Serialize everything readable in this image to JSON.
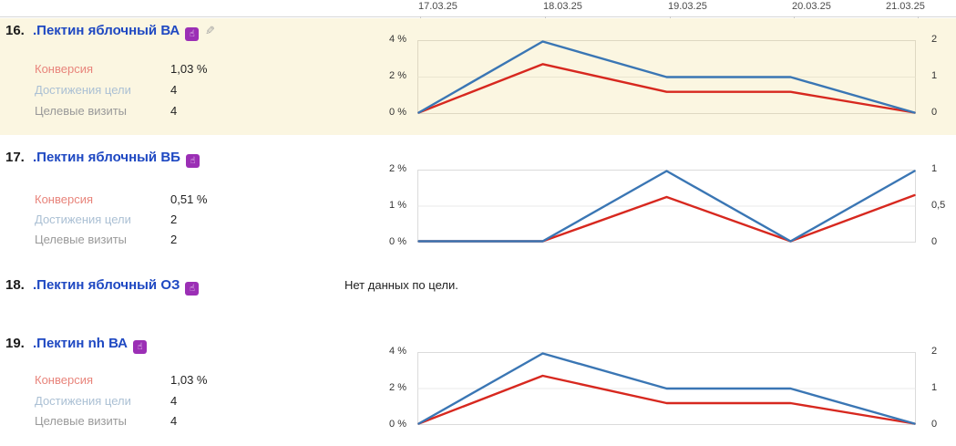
{
  "colors": {
    "accent_link": "#1e48c2",
    "goal_badge": "#9b2fb5",
    "line_blue": "#3a76b4",
    "line_red": "#d7281f",
    "label_conversion": "#e8847b",
    "label_reaches": "#abc0d4",
    "label_visits": "#999999",
    "row_highlight": "#fbf6e1"
  },
  "icons": {
    "goal_badge_glyph": "☝",
    "edit_glyph": "✎"
  },
  "axis": {
    "dates": [
      "17.03.25",
      "18.03.25",
      "19.03.25",
      "20.03.25",
      "21.03.25"
    ]
  },
  "metric_labels": {
    "conversion": "Конверсия",
    "reaches": "Достижения цели",
    "visits": "Целевые визиты"
  },
  "rows": [
    {
      "number": "16.",
      "title": ".Пектин яблочный ВА",
      "highlighted": true,
      "metrics": {
        "conversion": "1,03 %",
        "reaches": "4",
        "visits": "4"
      },
      "chart": {
        "left_ticks": [
          "4 %",
          "2 %",
          "0 %"
        ],
        "right_ticks": [
          "2",
          "1",
          "0"
        ],
        "y_max_percent": 4,
        "border_color": "#ded8c2",
        "grid_color": "#ebe5d1",
        "series": [
          {
            "name": "Достижения цели",
            "color": "#3a76b4",
            "values_percent": [
              0,
              4,
              2,
              2,
              0
            ],
            "values_count": [
              0,
              2,
              1,
              1,
              0
            ]
          },
          {
            "name": "Конверсия",
            "color": "#d7281f",
            "values_percent": [
              0,
              2.7,
              1.2,
              1.2,
              0
            ]
          }
        ]
      }
    },
    {
      "number": "17.",
      "title": ".Пектин яблочный ВБ",
      "highlighted": false,
      "metrics": {
        "conversion": "0,51 %",
        "reaches": "2",
        "visits": "2"
      },
      "chart": {
        "left_ticks": [
          "2 %",
          "1 %",
          "0 %"
        ],
        "right_ticks": [
          "1",
          "0,5",
          "0"
        ],
        "y_max_percent": 2,
        "border_color": "#dbdbdb",
        "grid_color": "#e9e9e9",
        "series": [
          {
            "name": "Достижения цели",
            "color": "#3a76b4",
            "values_percent": [
              0,
              0,
              2,
              0,
              2
            ],
            "values_count": [
              0,
              0,
              1,
              0,
              1
            ]
          },
          {
            "name": "Конверсия",
            "color": "#d7281f",
            "values_percent": [
              0,
              0,
              1.25,
              0,
              1.3
            ]
          }
        ]
      }
    },
    {
      "number": "18.",
      "title": ".Пектин яблочный ОЗ",
      "highlighted": false,
      "no_data": "Нет данных по цели."
    },
    {
      "number": "19.",
      "title": ".Пектин nh ВА",
      "highlighted": false,
      "metrics": {
        "conversion": "1,03 %",
        "reaches": "4",
        "visits": "4"
      },
      "chart": {
        "left_ticks": [
          "4 %",
          "2 %",
          "0 %"
        ],
        "right_ticks": [
          "2",
          "1",
          "0"
        ],
        "y_max_percent": 4,
        "border_color": "#dbdbdb",
        "grid_color": "#e9e9e9",
        "series": [
          {
            "name": "Достижения цели",
            "color": "#3a76b4",
            "values_percent": [
              0,
              4,
              2,
              2,
              0
            ],
            "values_count": [
              0,
              2,
              1,
              1,
              0
            ]
          },
          {
            "name": "Конверсия",
            "color": "#d7281f",
            "values_percent": [
              0,
              2.7,
              1.2,
              1.2,
              0
            ]
          }
        ]
      }
    }
  ],
  "chart_data": [
    {
      "type": "line",
      "title": ".Пектин яблочный ВА",
      "x": [
        "17.03.25",
        "18.03.25",
        "19.03.25",
        "20.03.25",
        "21.03.25"
      ],
      "series": [
        {
          "name": "Достижения цели",
          "axis": "right",
          "values": [
            0,
            2,
            1,
            1,
            0
          ]
        },
        {
          "name": "Конверсия (%)",
          "axis": "left",
          "values": [
            0,
            2.7,
            1.2,
            1.2,
            0
          ]
        }
      ],
      "left_axis": {
        "ticks": [
          "0 %",
          "2 %",
          "4 %"
        ],
        "range": [
          0,
          4
        ]
      },
      "right_axis": {
        "ticks": [
          "0",
          "1",
          "2"
        ],
        "range": [
          0,
          2
        ]
      },
      "grid": true,
      "legend": "none"
    },
    {
      "type": "line",
      "title": ".Пектин яблочный ВБ",
      "x": [
        "17.03.25",
        "18.03.25",
        "19.03.25",
        "20.03.25",
        "21.03.25"
      ],
      "series": [
        {
          "name": "Достижения цели",
          "axis": "right",
          "values": [
            0,
            0,
            1,
            0,
            1
          ]
        },
        {
          "name": "Конверсия (%)",
          "axis": "left",
          "values": [
            0,
            0,
            1.25,
            0,
            1.3
          ]
        }
      ],
      "left_axis": {
        "ticks": [
          "0 %",
          "1 %",
          "2 %"
        ],
        "range": [
          0,
          2
        ]
      },
      "right_axis": {
        "ticks": [
          "0",
          "0,5",
          "1"
        ],
        "range": [
          0,
          1
        ]
      },
      "grid": true,
      "legend": "none"
    },
    {
      "type": "line",
      "title": ".Пектин nh ВА",
      "x": [
        "17.03.25",
        "18.03.25",
        "19.03.25",
        "20.03.25",
        "21.03.25"
      ],
      "series": [
        {
          "name": "Достижения цели",
          "axis": "right",
          "values": [
            0,
            2,
            1,
            1,
            0
          ]
        },
        {
          "name": "Конверсия (%)",
          "axis": "left",
          "values": [
            0,
            2.7,
            1.2,
            1.2,
            0
          ]
        }
      ],
      "left_axis": {
        "ticks": [
          "0 %",
          "2 %",
          "4 %"
        ],
        "range": [
          0,
          4
        ]
      },
      "right_axis": {
        "ticks": [
          "0",
          "1",
          "2"
        ],
        "range": [
          0,
          2
        ]
      },
      "grid": true,
      "legend": "none"
    }
  ]
}
